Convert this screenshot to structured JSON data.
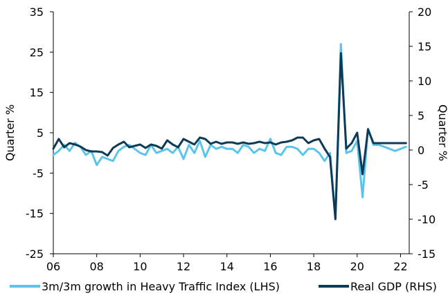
{
  "chart_data": {
    "type": "line",
    "title": "",
    "x": {
      "ticks": [
        2006,
        2008,
        2010,
        2012,
        2014,
        2016,
        2018,
        2020,
        2022
      ],
      "tick_labels": [
        "06",
        "08",
        "10",
        "12",
        "14",
        "16",
        "18",
        "20",
        "22"
      ],
      "range": [
        2006,
        2022.4
      ]
    },
    "y_left": {
      "label": "Quarter %",
      "range": [
        -25,
        35
      ],
      "ticks": [
        -25,
        -15,
        -5,
        5,
        15,
        25,
        35
      ]
    },
    "y_right": {
      "label": "Quarter %",
      "range": [
        -15,
        20
      ],
      "ticks": [
        -15,
        -10,
        -5,
        0,
        5,
        10,
        15,
        20
      ]
    },
    "grid": false,
    "legend": "bottom",
    "series": [
      {
        "name": "3m/3m growth in Heavy Traffic Index (LHS)",
        "axis": "left",
        "color": "#5bc4ea",
        "x": [
          2006.0,
          2006.25,
          2006.5,
          2006.75,
          2007.0,
          2007.25,
          2007.5,
          2007.75,
          2008.0,
          2008.25,
          2008.5,
          2008.75,
          2009.0,
          2009.25,
          2009.5,
          2009.75,
          2010.0,
          2010.25,
          2010.5,
          2010.75,
          2011.0,
          2011.25,
          2011.5,
          2011.75,
          2012.0,
          2012.25,
          2012.5,
          2012.75,
          2013.0,
          2013.25,
          2013.5,
          2013.75,
          2014.0,
          2014.25,
          2014.5,
          2014.75,
          2015.0,
          2015.25,
          2015.5,
          2015.75,
          2016.0,
          2016.25,
          2016.5,
          2016.75,
          2017.0,
          2017.25,
          2017.5,
          2017.75,
          2018.0,
          2018.25,
          2018.5,
          2018.75,
          2019.0,
          2019.25,
          2019.5,
          2019.75,
          2020.0,
          2020.25,
          2020.5,
          2020.75,
          2021.0,
          2021.25,
          2021.5,
          2021.75,
          2022.0,
          2022.25
        ],
        "values": [
          -0.5,
          0.5,
          2.0,
          0.5,
          2.5,
          1.5,
          -0.5,
          0.5,
          -3.0,
          -1.0,
          -1.5,
          -2.0,
          0.5,
          1.5,
          2.0,
          1.0,
          0.0,
          -0.5,
          2.0,
          0.0,
          0.5,
          1.0,
          0.0,
          1.5,
          -1.5,
          2.0,
          0.0,
          3.0,
          -1.0,
          2.0,
          1.0,
          1.5,
          1.0,
          1.0,
          0.0,
          2.0,
          1.5,
          0.0,
          1.0,
          0.5,
          3.5,
          0.0,
          -0.5,
          1.5,
          1.5,
          1.0,
          -0.5,
          1.0,
          1.0,
          0.0,
          -2.0,
          0.0,
          -16.0,
          27.0,
          0.0,
          0.5,
          3.0,
          -11.0,
          6.0,
          2.0,
          2.0,
          1.5,
          1.0,
          0.5,
          1.0,
          1.5
        ],
        "note": ""
      },
      {
        "name": "Real GDP (RHS)",
        "axis": "right",
        "color": "#0d3a56",
        "x": [
          2006.0,
          2006.25,
          2006.5,
          2006.75,
          2007.0,
          2007.25,
          2007.5,
          2007.75,
          2008.0,
          2008.25,
          2008.5,
          2008.75,
          2009.0,
          2009.25,
          2009.5,
          2009.75,
          2010.0,
          2010.25,
          2010.5,
          2010.75,
          2011.0,
          2011.25,
          2011.5,
          2011.75,
          2012.0,
          2012.25,
          2012.5,
          2012.75,
          2013.0,
          2013.25,
          2013.5,
          2013.75,
          2014.0,
          2014.25,
          2014.5,
          2014.75,
          2015.0,
          2015.25,
          2015.5,
          2015.75,
          2016.0,
          2016.25,
          2016.5,
          2016.75,
          2017.0,
          2017.25,
          2017.5,
          2017.75,
          2018.0,
          2018.25,
          2018.5,
          2018.75,
          2019.0,
          2019.25,
          2019.5,
          2019.75,
          2020.0,
          2020.25,
          2020.5,
          2020.75,
          2021.0,
          2021.25,
          2021.5,
          2021.75,
          2022.0,
          2022.25
        ],
        "values": [
          0.2,
          1.6,
          0.4,
          1.0,
          0.8,
          0.5,
          0.0,
          -0.2,
          -0.2,
          -0.3,
          -0.8,
          0.3,
          0.8,
          1.2,
          0.4,
          0.6,
          0.8,
          0.3,
          0.8,
          0.6,
          0.2,
          1.4,
          0.8,
          0.4,
          1.6,
          1.2,
          0.8,
          1.8,
          1.6,
          0.9,
          1.2,
          0.9,
          1.1,
          1.1,
          0.9,
          1.1,
          0.9,
          1.0,
          1.2,
          1.0,
          1.1,
          0.8,
          1.1,
          1.2,
          1.4,
          1.8,
          1.8,
          1.0,
          1.4,
          1.6,
          0.2,
          -1.0,
          -10.0,
          14.0,
          0.2,
          1.0,
          2.5,
          -3.5,
          3.0,
          1.0,
          1.0,
          1.0,
          1.0,
          1.0,
          1.0,
          1.0
        ]
      }
    ]
  }
}
